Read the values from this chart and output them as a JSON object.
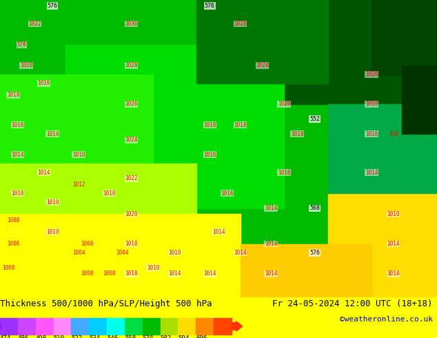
{
  "title_left": "Thickness 500/1000 hPa/SLP/Height 500 hPa",
  "title_right": "Fr 24-05-2024 12:00 UTC (18+18)",
  "credit": "©weatheronline.co.uk",
  "colorbar_values": [
    474,
    486,
    498,
    510,
    522,
    534,
    546,
    558,
    570,
    582,
    594,
    606
  ],
  "colorbar_colors": [
    "#9B30FF",
    "#CC44FF",
    "#FF55FF",
    "#FF88FF",
    "#44AAFF",
    "#00CCFF",
    "#00FFEE",
    "#00DD44",
    "#00BB00",
    "#AADD00",
    "#FFDD00",
    "#FF8800",
    "#FF4400"
  ],
  "map_bg_colors": {
    "dark_green": "#006600",
    "medium_green": "#00AA00",
    "bright_green": "#00FF00",
    "yellow": "#FFFF00",
    "light_yellow": "#FFFF88",
    "teal": "#008888"
  },
  "bottom_bar_color": "#FFFF00",
  "text_color_left": "#000000",
  "text_color_right": "#000000",
  "credit_color": "#0000CC",
  "label_fontsize": 9,
  "credit_fontsize": 8
}
